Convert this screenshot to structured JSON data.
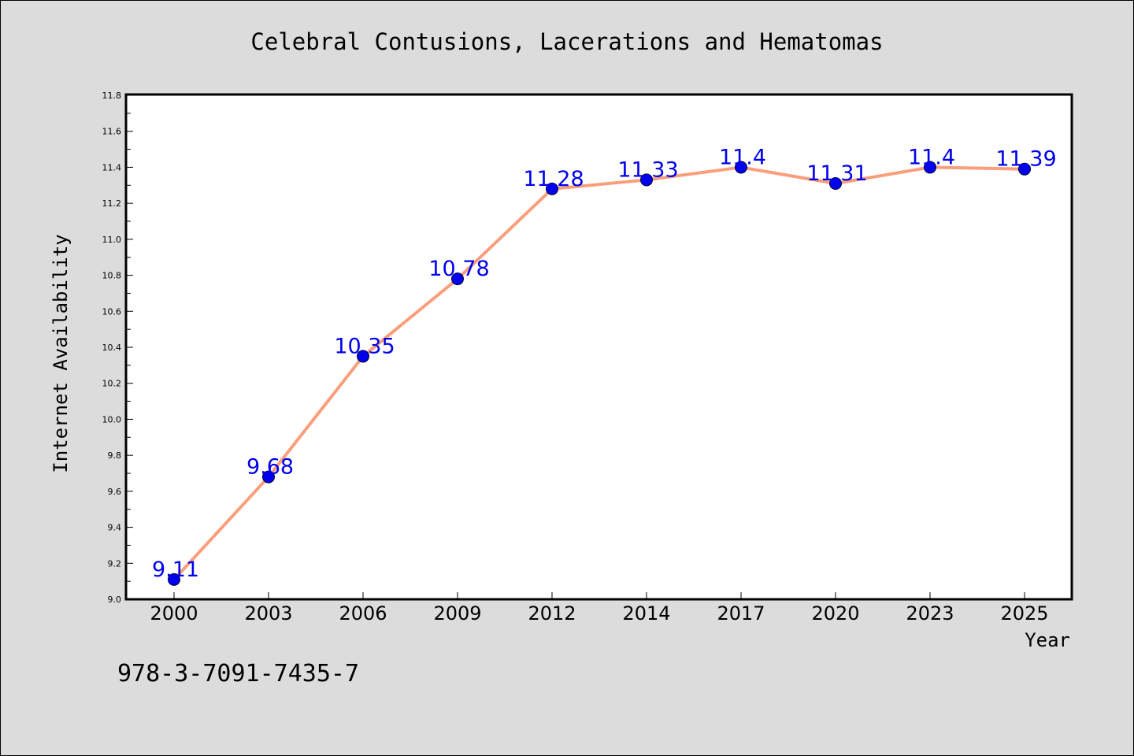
{
  "chart_data": {
    "type": "line",
    "title": "Celebral Contusions, Lacerations and Hematomas",
    "xlabel": "Year",
    "ylabel": "Internet Availability",
    "categories": [
      "2000",
      "2003",
      "2006",
      "2009",
      "2012",
      "2014",
      "2017",
      "2020",
      "2023",
      "2025"
    ],
    "series": [
      {
        "values": [
          9.11,
          9.68,
          10.35,
          10.78,
          11.28,
          11.33,
          11.4,
          11.31,
          11.4,
          11.39
        ],
        "data_labels": [
          "9.11",
          "9.68",
          "10.35",
          "10.78",
          "11.28",
          "11.33",
          "11.4",
          "11.31",
          "11.4",
          "11.39"
        ],
        "line_color": "#fa9e7c",
        "marker_color": "#0000ee"
      }
    ],
    "ylim": [
      9.0,
      11.8
    ],
    "yticks": [
      "9.0",
      "9.2",
      "9.4",
      "9.6",
      "9.8",
      "10.0",
      "10.2",
      "10.4",
      "10.6",
      "10.8",
      "11.0",
      "11.2",
      "11.4",
      "11.6",
      "11.8"
    ],
    "grid": false,
    "legend": "none"
  },
  "footnote": "978-3-7091-7435-7",
  "colors": {
    "background": "#dcdcdc",
    "plot_area": "#ffffff",
    "line": "#fa9e7c",
    "marker": "#0000ee",
    "data_label": "#0000ee"
  }
}
